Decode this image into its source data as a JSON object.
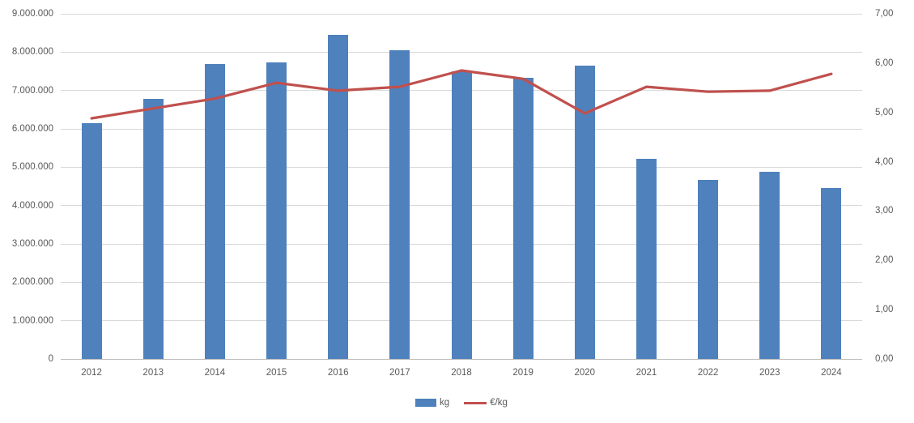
{
  "chart_data": {
    "type": "bar",
    "subtype": "combo-bar-line",
    "title": "",
    "xlabel": "",
    "ylabel_left": "",
    "ylabel_right": "",
    "grid": true,
    "categories": [
      "2012",
      "2013",
      "2014",
      "2015",
      "2016",
      "2017",
      "2018",
      "2019",
      "2020",
      "2021",
      "2022",
      "2023",
      "2024"
    ],
    "series": [
      {
        "name": "kg",
        "type": "bar",
        "axis": "left",
        "color": "#4f81bd",
        "values": [
          6150000,
          6780000,
          7700000,
          7730000,
          8460000,
          8040000,
          7500000,
          7330000,
          7640000,
          5220000,
          4670000,
          4870000,
          4450000
        ]
      },
      {
        "name": "€/kg",
        "type": "line",
        "axis": "right",
        "color": "#c0504d",
        "values": [
          4.88,
          5.08,
          5.28,
          5.6,
          5.44,
          5.52,
          5.85,
          5.68,
          4.98,
          5.52,
          5.42,
          5.44,
          5.78
        ]
      }
    ],
    "left_axis": {
      "min": 0,
      "max": 9000000,
      "tick_interval": 1000000,
      "tick_labels": [
        "0",
        "1.000.000",
        "2.000.000",
        "3.000.000",
        "4.000.000",
        "5.000.000",
        "6.000.000",
        "7.000.000",
        "8.000.000",
        "9.000.000"
      ]
    },
    "right_axis": {
      "min": 0,
      "max": 7,
      "tick_interval": 1,
      "tick_labels": [
        "0,00",
        "1,00",
        "2,00",
        "3,00",
        "4,00",
        "5,00",
        "6,00",
        "7,00"
      ]
    },
    "legend": {
      "position": "bottom-center",
      "entries": [
        {
          "label": "kg",
          "marker": "square",
          "color": "#4f81bd"
        },
        {
          "label": "€/kg",
          "marker": "line",
          "color": "#c0504d"
        }
      ]
    }
  },
  "colors": {
    "bar": "#4f81bd",
    "line": "#c0504d",
    "gridline": "#d9d9d9",
    "axis_line": "#bfbfbf",
    "tick_text": "#595959",
    "background": "#ffffff"
  },
  "legend": {
    "kg_label": "kg",
    "eur_label": "€/kg"
  }
}
